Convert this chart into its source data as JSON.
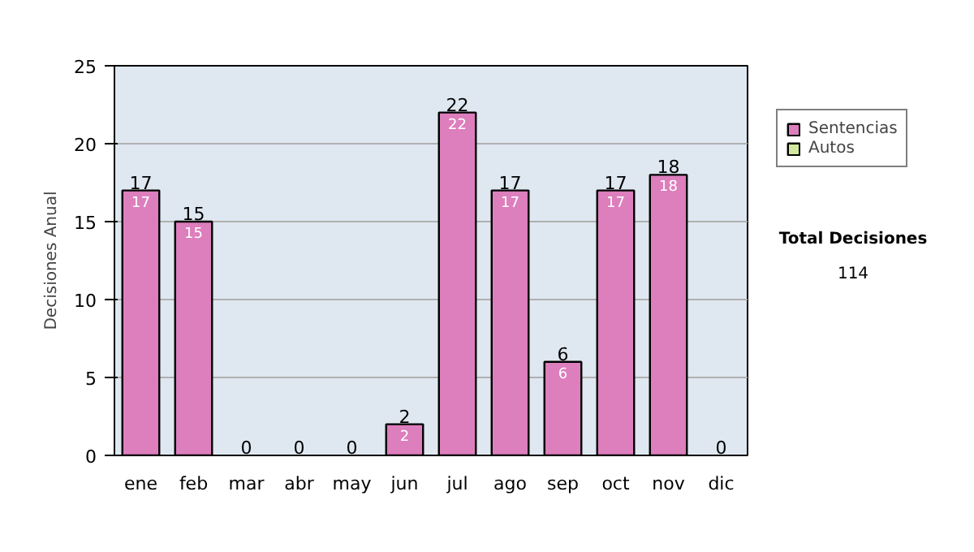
{
  "chart_data": {
    "type": "bar",
    "stacked": true,
    "ylabel": "Decisiones Anual",
    "categories": [
      "ene",
      "feb",
      "mar",
      "abr",
      "may",
      "jun",
      "jul",
      "ago",
      "sep",
      "oct",
      "nov",
      "dic"
    ],
    "series": [
      {
        "name": "Sentencias",
        "color": "#dd7ebd",
        "values": [
          17,
          15,
          0,
          0,
          0,
          2,
          22,
          17,
          6,
          17,
          18,
          0
        ],
        "value_labels": [
          "17",
          "15",
          null,
          null,
          null,
          "2",
          "22",
          "17",
          "6",
          "17",
          "18",
          null
        ]
      },
      {
        "name": "Autos",
        "color": "#d2e8a0",
        "values": [
          0,
          0,
          0,
          0,
          0,
          0,
          0,
          0,
          0,
          0,
          0,
          0
        ]
      }
    ],
    "totals": [
      "17",
      "15",
      "0",
      "0",
      "0",
      "2",
      "22",
      "17",
      "6",
      "17",
      "18",
      "0"
    ],
    "ylim": [
      0,
      25
    ],
    "yticks": [
      0,
      5,
      10,
      15,
      20,
      25
    ],
    "grid": "y",
    "legend": "right",
    "annotations": [
      "Total Decisiones",
      "114"
    ]
  }
}
